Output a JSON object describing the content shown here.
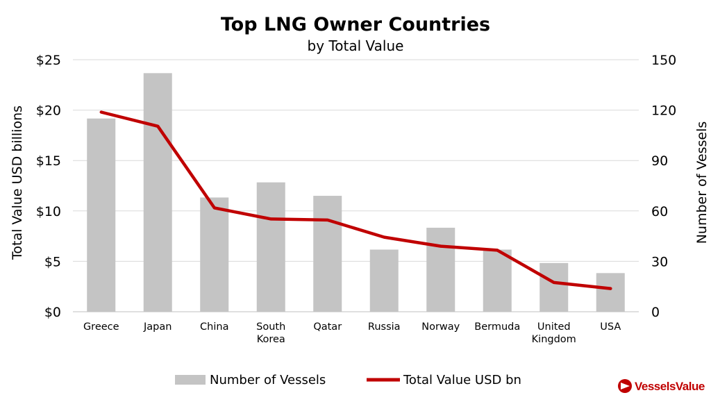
{
  "chart_data": {
    "type": "bar",
    "title": "Top LNG Owner Countries",
    "subtitle": "by Total Value",
    "categories": [
      [
        "Greece"
      ],
      [
        "Japan"
      ],
      [
        "China"
      ],
      [
        "South",
        "Korea"
      ],
      [
        "Qatar"
      ],
      [
        "Russia"
      ],
      [
        "Norway"
      ],
      [
        "Bermuda"
      ],
      [
        "United",
        "Kingdom"
      ],
      [
        "USA"
      ]
    ],
    "series": [
      {
        "name": "Number of Vessels",
        "type": "bar",
        "axis": "right",
        "color": "#c4c4c4",
        "values": [
          115,
          142,
          68,
          77,
          69,
          37,
          50,
          37,
          29,
          23
        ]
      },
      {
        "name": "Total Value USD bn",
        "type": "line",
        "axis": "left",
        "color": "#c00000",
        "values": [
          19.8,
          18.4,
          10.3,
          9.2,
          9.1,
          7.4,
          6.5,
          6.1,
          2.9,
          2.3
        ]
      }
    ],
    "ylabel_left": "Total Value USD billions",
    "ylabel_right": "Number of Vessels",
    "ylim_left": [
      0,
      25
    ],
    "ylim_right": [
      0,
      150
    ],
    "yticks_left": [
      "$0",
      "$5",
      "$10",
      "$15",
      "$20",
      "$25"
    ],
    "yticks_right": [
      "0",
      "30",
      "60",
      "90",
      "120",
      "150"
    ],
    "grid": true,
    "legend_position": "bottom"
  },
  "brand": {
    "name": "VesselsValue",
    "color": "#c00000",
    "icon": "vesselsvalue-logo-icon"
  }
}
